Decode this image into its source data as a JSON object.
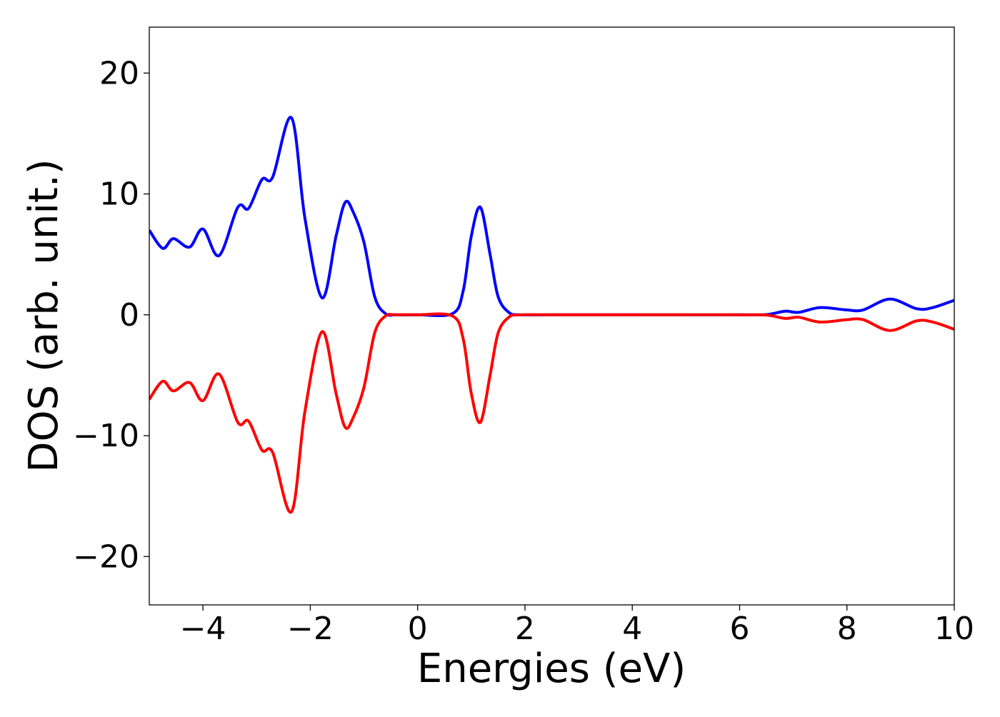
{
  "chart_data": {
    "type": "line",
    "title": "",
    "xlabel": "Energies (eV)",
    "ylabel": "DOS (arb. unit.)",
    "xlim": [
      -5,
      10
    ],
    "ylim": [
      -24,
      23.8
    ],
    "xticks": [
      -4,
      -2,
      0,
      2,
      4,
      6,
      8,
      10
    ],
    "xtick_labels": [
      "−4",
      "−2",
      "0",
      "2",
      "4",
      "6",
      "8",
      "10"
    ],
    "yticks": [
      20,
      10,
      0,
      -10,
      -20
    ],
    "ytick_labels": [
      "20",
      "10",
      "0",
      "−10",
      "−20"
    ],
    "grid": false,
    "legend": "none",
    "series": [
      {
        "color": "#0000ff",
        "x": [
          -5.0,
          -4.75,
          -4.55,
          -4.25,
          -4.0,
          -3.7,
          -3.35,
          -3.15,
          -2.9,
          -2.7,
          -2.35,
          -2.1,
          -1.78,
          -1.52,
          -1.35,
          -1.2,
          -1.0,
          -0.8,
          -0.6,
          -0.4,
          0.0,
          0.65,
          0.85,
          1.0,
          1.17,
          1.35,
          1.5,
          1.7,
          1.9,
          2.5,
          4.0,
          6.0,
          6.5,
          6.85,
          7.1,
          7.5,
          8.0,
          8.3,
          8.8,
          9.3,
          9.6,
          10.0
        ],
        "y": [
          7.0,
          5.5,
          6.3,
          5.6,
          7.1,
          4.9,
          8.9,
          8.8,
          11.2,
          11.4,
          16.3,
          8.0,
          1.4,
          6.5,
          9.3,
          8.5,
          6.0,
          1.5,
          0.1,
          0.0,
          0.0,
          0.1,
          2.0,
          6.5,
          8.9,
          5.0,
          1.5,
          0.2,
          0.0,
          0.0,
          0.0,
          0.0,
          0.02,
          0.3,
          0.2,
          0.6,
          0.4,
          0.4,
          1.3,
          0.5,
          0.6,
          1.2
        ]
      },
      {
        "color": "#ff0000",
        "x": [
          -5.0,
          -4.75,
          -4.55,
          -4.25,
          -4.0,
          -3.7,
          -3.35,
          -3.15,
          -2.9,
          -2.7,
          -2.35,
          -2.1,
          -1.78,
          -1.52,
          -1.35,
          -1.2,
          -1.0,
          -0.8,
          -0.6,
          -0.4,
          0.0,
          0.65,
          0.85,
          1.0,
          1.17,
          1.35,
          1.5,
          1.7,
          1.9,
          2.5,
          4.0,
          6.0,
          6.5,
          6.85,
          7.1,
          7.5,
          8.0,
          8.3,
          8.8,
          9.3,
          9.6,
          10.0
        ],
        "y": [
          -7.0,
          -5.5,
          -6.3,
          -5.6,
          -7.1,
          -4.9,
          -8.9,
          -8.8,
          -11.2,
          -11.4,
          -16.3,
          -8.0,
          -1.4,
          -6.5,
          -9.3,
          -8.5,
          -6.0,
          -1.5,
          -0.1,
          0.0,
          0.0,
          -0.1,
          -2.0,
          -6.5,
          -8.9,
          -5.0,
          -1.5,
          -0.2,
          0.0,
          0.0,
          0.0,
          0.0,
          -0.02,
          -0.3,
          -0.2,
          -0.6,
          -0.4,
          -0.4,
          -1.3,
          -0.5,
          -0.6,
          -1.2
        ]
      }
    ]
  }
}
